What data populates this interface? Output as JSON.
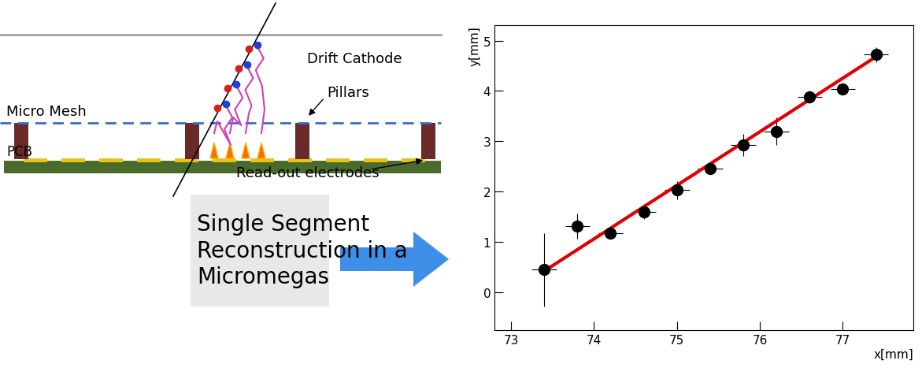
{
  "diagram": {
    "labels": {
      "drift_cathode": "Drift Cathode",
      "micro_mesh": "Micro Mesh",
      "pillars": "Pillars",
      "pcb": "PCB",
      "readout": "Read-out electrodes"
    },
    "caption": "Single Segment\nReconstruction in a\nMicromegas"
  },
  "chart_data": {
    "type": "scatter",
    "x": [
      73.4,
      73.8,
      74.2,
      74.6,
      75.0,
      75.4,
      75.8,
      76.2,
      76.6,
      77.0,
      77.4
    ],
    "values": [
      0.45,
      1.32,
      1.17,
      1.6,
      2.03,
      2.45,
      2.93,
      3.2,
      3.88,
      4.03,
      4.72
    ],
    "x_errors": [
      0.15,
      0.15,
      0.15,
      0.15,
      0.15,
      0.15,
      0.15,
      0.15,
      0.15,
      0.15,
      0.15
    ],
    "y_errors": [
      0.73,
      0.25,
      0.08,
      0.15,
      0.18,
      0.08,
      0.22,
      0.28,
      0.12,
      0.1,
      0.15
    ],
    "color": "#000000",
    "marker": "o",
    "fit": {
      "type": "line",
      "x": [
        73.4,
        77.4
      ],
      "values": [
        0.42,
        4.68
      ],
      "color": "#e00000"
    },
    "x_label": "x[mm]",
    "y_label": "y[mm]",
    "xlim": [
      72.8,
      77.85
    ],
    "xticks": [
      73,
      74,
      75,
      76,
      77
    ],
    "ylim": [
      -0.75,
      5.3
    ],
    "yticks": [
      0,
      1,
      2,
      3,
      4,
      5
    ],
    "grid": false
  }
}
